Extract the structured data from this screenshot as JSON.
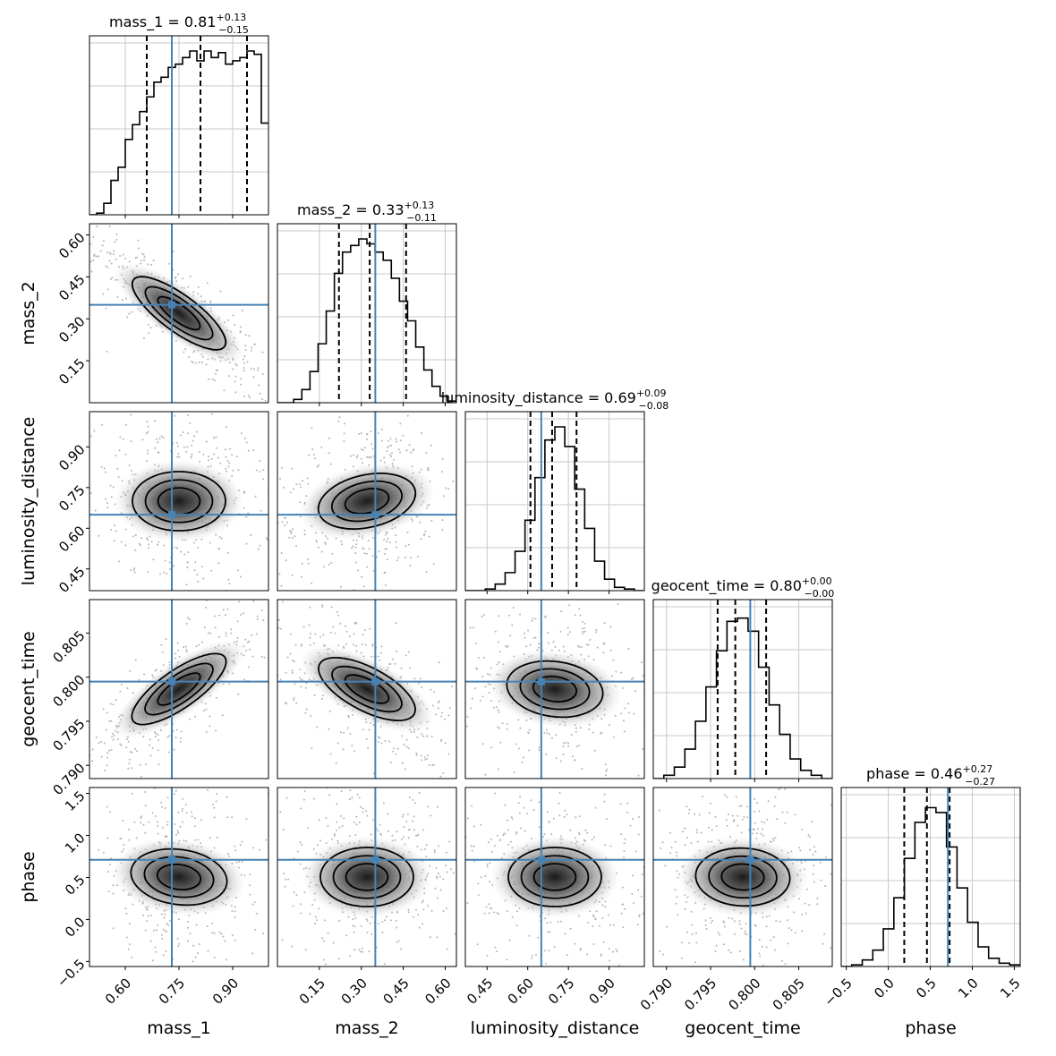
{
  "chart_data": {
    "type": "corner",
    "parameters": [
      "mass_1",
      "mass_2",
      "luminosity_distance",
      "geocent_time",
      "phase"
    ],
    "ranges": [
      [
        0.5,
        1.0
      ],
      [
        0.0,
        0.64
      ],
      [
        0.37,
        1.03
      ],
      [
        0.7885,
        0.8088
      ],
      [
        -0.56,
        1.57
      ]
    ],
    "ticks": [
      [
        "0.60",
        "0.75",
        "0.90"
      ],
      [
        "0.15",
        "0.30",
        "0.45",
        "0.60"
      ],
      [
        "0.45",
        "0.60",
        "0.75",
        "0.90"
      ],
      [
        "0.790",
        "0.795",
        "0.800",
        "0.805"
      ],
      [
        "−0.5",
        "0.0",
        "0.5",
        "1.0",
        "1.5"
      ]
    ],
    "titles": [
      {
        "name": "mass_1",
        "value": "0.81",
        "plus": "+0.13",
        "minus": "−0.15"
      },
      {
        "name": "mass_2",
        "value": "0.33",
        "plus": "+0.13",
        "minus": "−0.11"
      },
      {
        "name": "luminosity_distance",
        "value": "0.69",
        "plus": "+0.09",
        "minus": "−0.08"
      },
      {
        "name": "geocent_time",
        "value": "0.80",
        "plus": "+0.00",
        "minus": "−0.00"
      },
      {
        "name": "phase",
        "value": "0.46",
        "plus": "+0.27",
        "minus": "−0.27"
      }
    ],
    "truths": [
      0.73,
      0.35,
      0.65,
      0.7995,
      0.71
    ],
    "quantiles": [
      [
        0.66,
        0.81,
        0.94
      ],
      [
        0.22,
        0.33,
        0.46
      ],
      [
        0.61,
        0.69,
        0.78
      ],
      [
        0.7958,
        0.7978,
        0.8013
      ],
      [
        0.19,
        0.46,
        0.73
      ]
    ],
    "histograms": [
      [
        0.0,
        0.01,
        0.07,
        0.21,
        0.29,
        0.46,
        0.55,
        0.63,
        0.72,
        0.81,
        0.84,
        0.9,
        0.92,
        0.96,
        1.0,
        0.94,
        1.0,
        0.96,
        0.99,
        0.92,
        0.94,
        0.96,
        1.0,
        0.98,
        0.56
      ],
      [
        0.0,
        0.0,
        0.02,
        0.08,
        0.19,
        0.36,
        0.56,
        0.79,
        0.92,
        0.96,
        1.0,
        0.97,
        0.92,
        0.87,
        0.76,
        0.62,
        0.5,
        0.34,
        0.2,
        0.1,
        0.04,
        0.01
      ],
      [
        0.0,
        0.0,
        0.01,
        0.04,
        0.11,
        0.24,
        0.43,
        0.69,
        0.92,
        1.0,
        0.88,
        0.62,
        0.38,
        0.18,
        0.07,
        0.02,
        0.01,
        0.0
      ],
      [
        0.0,
        0.02,
        0.07,
        0.18,
        0.35,
        0.56,
        0.78,
        0.96,
        0.98,
        0.9,
        0.68,
        0.45,
        0.27,
        0.12,
        0.05,
        0.02,
        0.0
      ],
      [
        0.0,
        0.01,
        0.04,
        0.1,
        0.23,
        0.42,
        0.66,
        0.88,
        0.97,
        0.94,
        0.73,
        0.48,
        0.27,
        0.12,
        0.05,
        0.02,
        0.01
      ]
    ],
    "correlations": {
      "1-0": -0.85,
      "2-0": 0.0,
      "2-1": 0.25,
      "3-0": 0.8,
      "3-1": -0.6,
      "3-2": -0.15,
      "4-0": -0.15,
      "4-1": 0.0,
      "4-2": 0.0,
      "4-3": -0.05
    },
    "colors": {
      "truth": "#4682b4",
      "line": "#000000",
      "density": "#3c3c3c",
      "points": "#b4b4b4",
      "grid": "#c8c8c8"
    }
  }
}
